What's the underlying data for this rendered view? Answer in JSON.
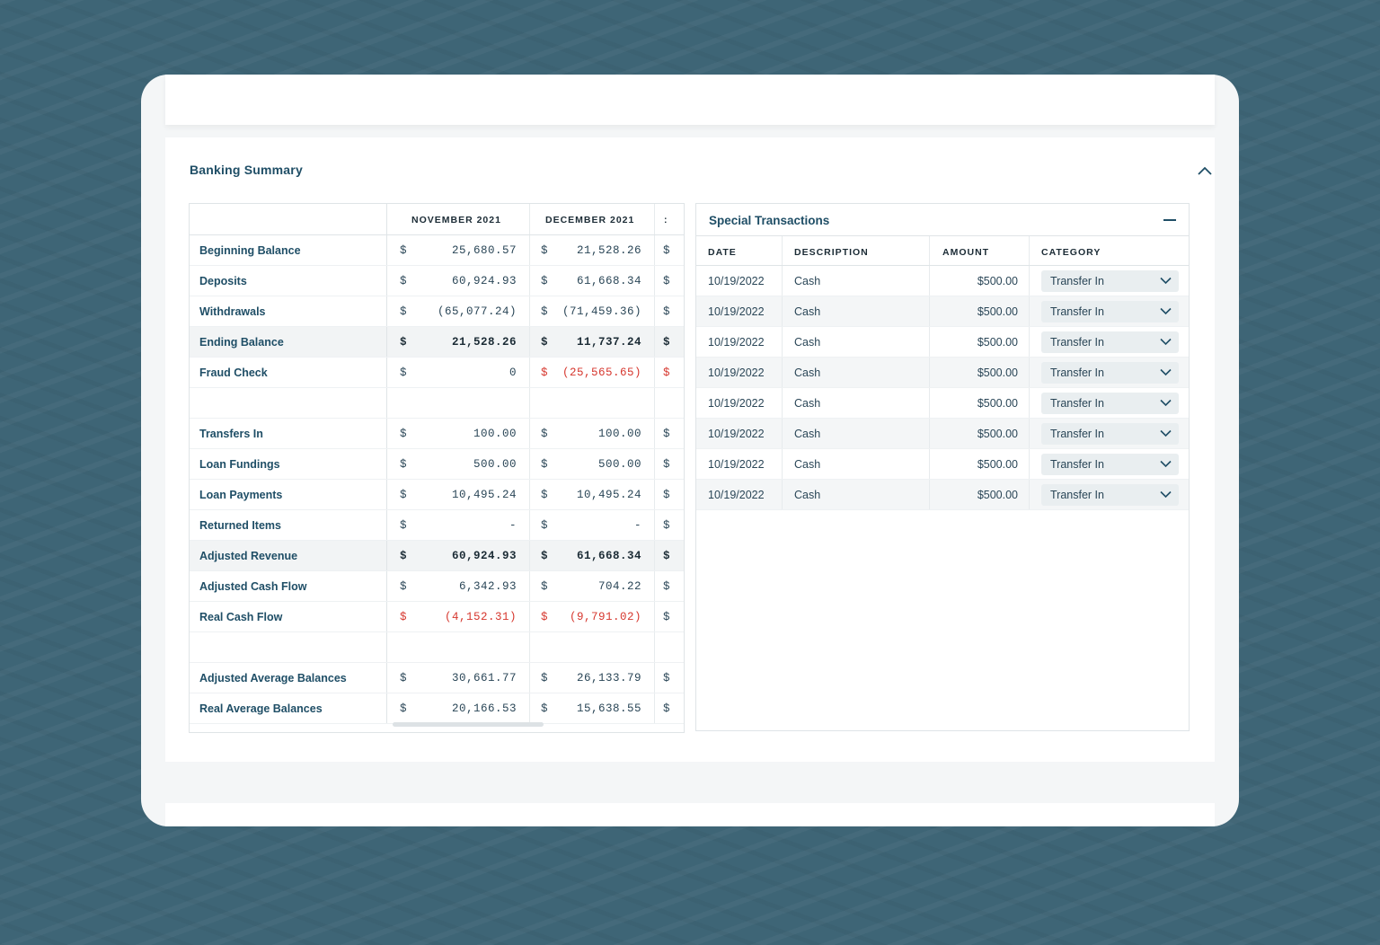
{
  "section": {
    "title": "Banking Summary"
  },
  "banking": {
    "months": [
      "NOVEMBER 2021",
      "DECEMBER 2021",
      ":"
    ],
    "rows": [
      {
        "label": "Beginning Balance",
        "cells": [
          {
            "d": "$",
            "v": "25,680.57"
          },
          {
            "d": "$",
            "v": "21,528.26"
          },
          {
            "d": "$"
          }
        ]
      },
      {
        "label": "Deposits",
        "cells": [
          {
            "d": "$",
            "v": "60,924.93"
          },
          {
            "d": "$",
            "v": "61,668.34"
          },
          {
            "d": "$"
          }
        ]
      },
      {
        "label": "Withdrawals",
        "cells": [
          {
            "d": "$",
            "v": "(65,077.24)"
          },
          {
            "d": "$",
            "v": "(71,459.36)"
          },
          {
            "d": "$"
          }
        ]
      },
      {
        "label": "Ending Balance",
        "bold": true,
        "cells": [
          {
            "d": "$",
            "v": "21,528.26"
          },
          {
            "d": "$",
            "v": "11,737.24"
          },
          {
            "d": "$"
          }
        ]
      },
      {
        "label": "Fraud Check",
        "cells": [
          {
            "d": "$",
            "v": "0"
          },
          {
            "d": "$",
            "v": "(25,565.65)",
            "neg": true
          },
          {
            "d": "$",
            "neg": true
          }
        ]
      },
      {
        "spacer": true
      },
      {
        "label": "Transfers In",
        "cells": [
          {
            "d": "$",
            "v": "100.00"
          },
          {
            "d": "$",
            "v": "100.00"
          },
          {
            "d": "$"
          }
        ]
      },
      {
        "label": "Loan Fundings",
        "cells": [
          {
            "d": "$",
            "v": "500.00"
          },
          {
            "d": "$",
            "v": "500.00"
          },
          {
            "d": "$"
          }
        ]
      },
      {
        "label": "Loan Payments",
        "cells": [
          {
            "d": "$",
            "v": "10,495.24"
          },
          {
            "d": "$",
            "v": "10,495.24"
          },
          {
            "d": "$"
          }
        ]
      },
      {
        "label": "Returned Items",
        "cells": [
          {
            "d": "$",
            "v": "-"
          },
          {
            "d": "$",
            "v": "-"
          },
          {
            "d": "$"
          }
        ]
      },
      {
        "label": "Adjusted Revenue",
        "bold": true,
        "cells": [
          {
            "d": "$",
            "v": "60,924.93"
          },
          {
            "d": "$",
            "v": "61,668.34"
          },
          {
            "d": "$"
          }
        ]
      },
      {
        "label": "Adjusted Cash Flow",
        "cells": [
          {
            "d": "$",
            "v": "6,342.93"
          },
          {
            "d": "$",
            "v": "704.22"
          },
          {
            "d": "$"
          }
        ]
      },
      {
        "label": "Real Cash Flow",
        "cells": [
          {
            "d": "$",
            "v": "(4,152.31)",
            "neg": true
          },
          {
            "d": "$",
            "v": "(9,791.02)",
            "neg": true
          },
          {
            "d": "$"
          }
        ]
      },
      {
        "spacer": true
      },
      {
        "label": "Adjusted Average Balances",
        "cells": [
          {
            "d": "$",
            "v": "30,661.77"
          },
          {
            "d": "$",
            "v": "26,133.79"
          },
          {
            "d": "$"
          }
        ]
      },
      {
        "label": "Real Average Balances",
        "cells": [
          {
            "d": "$",
            "v": "20,166.53"
          },
          {
            "d": "$",
            "v": "15,638.55"
          },
          {
            "d": "$"
          }
        ]
      }
    ]
  },
  "special": {
    "title": "Special Transactions",
    "columns": [
      "DATE",
      "DESCRIPTION",
      "AMOUNT",
      "CATEGORY"
    ],
    "rows": [
      {
        "date": "10/19/2022",
        "description": "Cash",
        "amount": "$500.00",
        "category": "Transfer In"
      },
      {
        "date": "10/19/2022",
        "description": "Cash",
        "amount": "$500.00",
        "category": "Transfer In"
      },
      {
        "date": "10/19/2022",
        "description": "Cash",
        "amount": "$500.00",
        "category": "Transfer In"
      },
      {
        "date": "10/19/2022",
        "description": "Cash",
        "amount": "$500.00",
        "category": "Transfer In"
      },
      {
        "date": "10/19/2022",
        "description": "Cash",
        "amount": "$500.00",
        "category": "Transfer In"
      },
      {
        "date": "10/19/2022",
        "description": "Cash",
        "amount": "$500.00",
        "category": "Transfer In"
      },
      {
        "date": "10/19/2022",
        "description": "Cash",
        "amount": "$500.00",
        "category": "Transfer In"
      },
      {
        "date": "10/19/2022",
        "description": "Cash",
        "amount": "$500.00",
        "category": "Transfer In"
      }
    ]
  },
  "colors": {
    "accent": "#1f4e66",
    "negative": "#d6372e",
    "background": "#3e6576"
  }
}
